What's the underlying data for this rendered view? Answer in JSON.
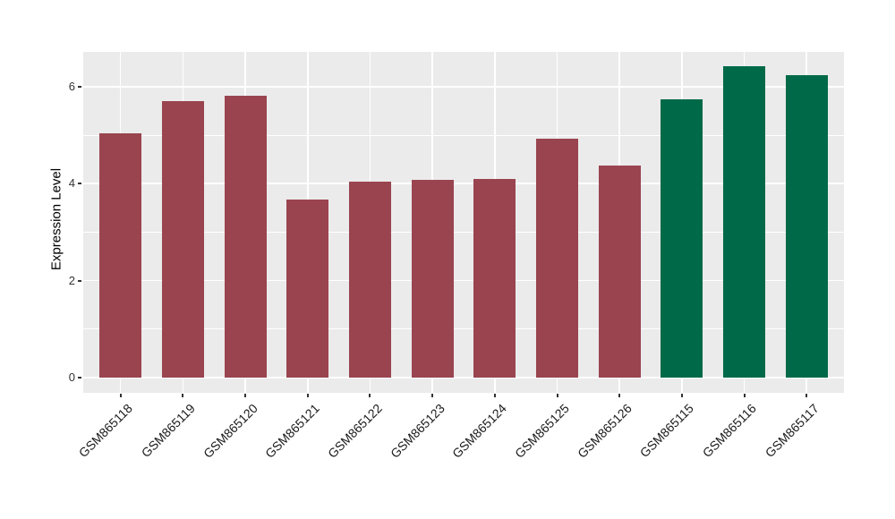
{
  "chart_data": {
    "type": "bar",
    "title": "",
    "xlabel": "",
    "ylabel": "Expression Level",
    "categories": [
      "GSM865118",
      "GSM865119",
      "GSM865120",
      "GSM865121",
      "GSM865122",
      "GSM865123",
      "GSM865124",
      "GSM865125",
      "GSM865126",
      "GSM865115",
      "GSM865116",
      "GSM865117"
    ],
    "values": [
      5.03,
      5.71,
      5.82,
      3.67,
      4.04,
      4.08,
      4.1,
      4.93,
      4.38,
      5.74,
      6.42,
      6.23
    ],
    "bar_colors": [
      "#9A4450",
      "#9A4450",
      "#9A4450",
      "#9A4450",
      "#9A4450",
      "#9A4450",
      "#9A4450",
      "#9A4450",
      "#9A4450",
      "#006A48",
      "#006A48",
      "#006A48"
    ],
    "group_colors": {
      "maroon": "#9A4450",
      "green": "#006A48"
    },
    "yticks": [
      0,
      2,
      4,
      6
    ],
    "yticks_minor": [
      1,
      3,
      5
    ],
    "ylim": [
      0,
      6.7
    ],
    "grid": true,
    "legend": "none",
    "panel_bg": "#EBEBEB",
    "grid_color": "#FFFFFF",
    "tick_color": "#333333"
  }
}
